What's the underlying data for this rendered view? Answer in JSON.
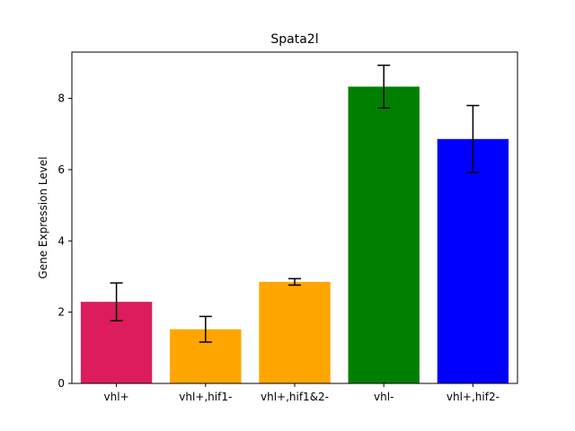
{
  "chart_data": {
    "type": "bar",
    "title": "Spata2l",
    "xlabel": "",
    "ylabel": "Gene Expression Level",
    "categories": [
      "vhl+",
      "vhl+,hif1-",
      "vhl+,hif1&2-",
      "vhl-",
      "vhl+,hif2-"
    ],
    "values": [
      2.29,
      1.52,
      2.85,
      8.33,
      6.86
    ],
    "errors": [
      0.53,
      0.36,
      0.09,
      0.6,
      0.94
    ],
    "colors": [
      "#dc1c5c",
      "#ffa500",
      "#ffa500",
      "#008000",
      "#0000ff"
    ],
    "ylim": [
      0,
      9.3
    ],
    "yticks": [
      0,
      2,
      4,
      6,
      8
    ],
    "grid": false
  }
}
